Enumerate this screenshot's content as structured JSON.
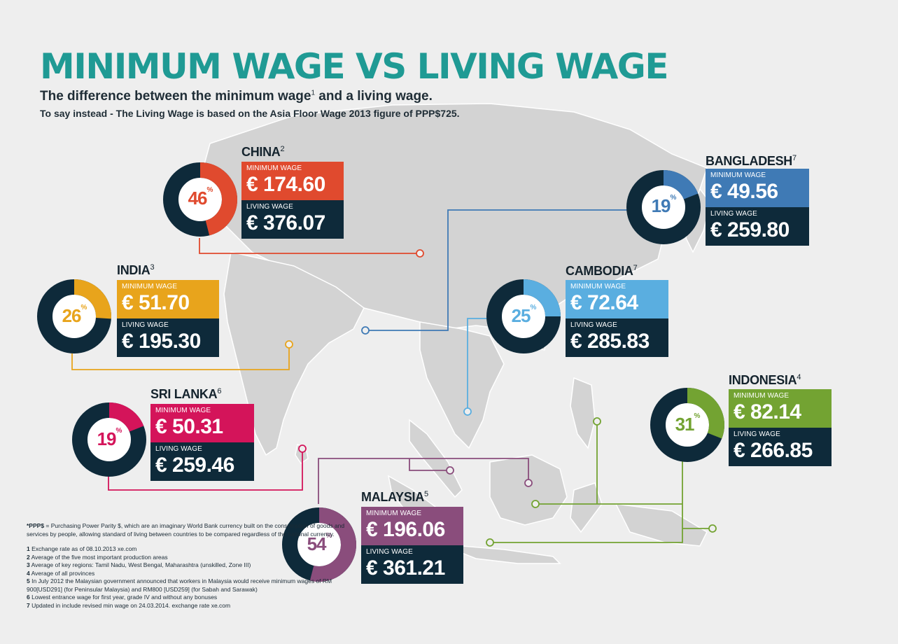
{
  "title": "MINIMUM WAGE VS LIVING WAGE",
  "subtitle_main": "The difference between the minimum wage",
  "subtitle_sup": "1",
  "subtitle_end": " and a living wage.",
  "subtitle2": "To say instead - The Living Wage is based on the Asia Floor Wage 2013 figure of PPP$725.",
  "min_label": "MINIMUM WAGE",
  "living_label": "LIVING WAGE",
  "colors": {
    "china": "#e04a2e",
    "india": "#e8a41c",
    "srilanka": "#d4145a",
    "malaysia": "#8a4d7c",
    "bangladesh": "#3f7ab5",
    "cambodia": "#5aaee0",
    "indonesia": "#73a332",
    "navy": "#0e2a3a",
    "teal_title": "#1f9a94",
    "land": "#d3d3d3"
  },
  "countries": {
    "china": {
      "name": "CHINA",
      "note": "2",
      "percent": "46",
      "percent_value": 46,
      "minimum": "€ 174.60",
      "living": "€ 376.07"
    },
    "india": {
      "name": "INDIA",
      "note": "3",
      "percent": "26",
      "percent_value": 26,
      "minimum": "€ 51.70",
      "living": "€ 195.30"
    },
    "srilanka": {
      "name": "SRI LANKA",
      "note": "6",
      "percent": "19",
      "percent_value": 19,
      "minimum": "€ 50.31",
      "living": "€ 259.46"
    },
    "malaysia": {
      "name": "MALAYSIA",
      "note": "5",
      "percent": "54",
      "percent_value": 54,
      "minimum": "€ 196.06",
      "living": "€ 361.21"
    },
    "bangladesh": {
      "name": "BANGLADESH",
      "note": "7",
      "percent": "19",
      "percent_value": 19,
      "minimum": "€ 49.56",
      "living": "€ 259.80"
    },
    "cambodia": {
      "name": "CAMBODIA",
      "note": "7",
      "percent": "25",
      "percent_value": 25,
      "minimum": "€ 72.64",
      "living": "€ 285.83"
    },
    "indonesia": {
      "name": "INDONESIA",
      "note": "4",
      "percent": "31",
      "percent_value": 31,
      "minimum": "€ 82.14",
      "living": "€ 266.85"
    }
  },
  "percent_sign": "%",
  "ppp_bold": "*PPP$",
  "ppp_text": " = Purchasing Power Parity $, which are an imaginary World Bank currency built on the consumption of goods and services by people, allowing standard of living between countries to be compared regardless of the national currency.",
  "footnotes": [
    {
      "n": "1",
      "text": "Exchange rate as of 08.10.2013 xe.com"
    },
    {
      "n": "2",
      "text": "Average of the five most important production areas"
    },
    {
      "n": "3",
      "text": "Average of key regions: Tamil Nadu, West Bengal, Maharashtra (unskilled, Zone III)"
    },
    {
      "n": "4",
      "text": "Average of all provinces"
    },
    {
      "n": "5",
      "text": "In July 2012 the Malaysian government announced that workers in Malaysia would receive minimum wages of RM 900[USD291] (for Peninsular Malaysia) and RM800 [USD259] (for Sabah and Sarawak)"
    },
    {
      "n": "6",
      "text": "Lowest entrance wage for first year, grade IV and without any bonuses"
    },
    {
      "n": "7",
      "text": "Updated in include revised min wage on 24.03.2014. exchange rate xe.com"
    }
  ]
}
